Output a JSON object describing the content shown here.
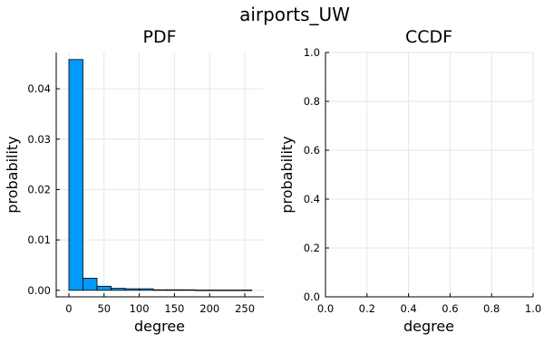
{
  "chart_data": [
    {
      "type": "bar",
      "figure_title": "airports_UW",
      "title": "PDF",
      "xlabel": "degree",
      "ylabel": "probability",
      "bin_width": 20,
      "bins": [
        {
          "start": 0,
          "end": 20,
          "value": 0.0458
        },
        {
          "start": 20,
          "end": 40,
          "value": 0.0024
        },
        {
          "start": 40,
          "end": 60,
          "value": 0.0008
        },
        {
          "start": 60,
          "end": 80,
          "value": 0.0004
        },
        {
          "start": 80,
          "end": 100,
          "value": 0.0003
        },
        {
          "start": 100,
          "end": 120,
          "value": 0.0003
        },
        {
          "start": 120,
          "end": 140,
          "value": 0.0001
        },
        {
          "start": 140,
          "end": 160,
          "value": 0.0001
        },
        {
          "start": 160,
          "end": 180,
          "value": 0.0001
        },
        {
          "start": 180,
          "end": 200,
          "value": 5e-05
        },
        {
          "start": 200,
          "end": 220,
          "value": 5e-05
        },
        {
          "start": 220,
          "end": 240,
          "value": 5e-05
        },
        {
          "start": 240,
          "end": 260,
          "value": 5e-05
        }
      ],
      "xlim": [
        -18,
        277
      ],
      "ylim": [
        -0.0013,
        0.0472
      ],
      "xticks": [
        0,
        50,
        100,
        150,
        200,
        250
      ],
      "xtick_labels": [
        "0",
        "50",
        "100",
        "150",
        "200",
        "250"
      ],
      "yticks": [
        0,
        0.01,
        0.02,
        0.03,
        0.04
      ],
      "ytick_labels": [
        "0.00",
        "0.01",
        "0.02",
        "0.03",
        "0.04"
      ],
      "grid": true,
      "bar_color": "#009AFA"
    },
    {
      "type": "line",
      "title": "CCDF",
      "xlabel": "degree",
      "ylabel": "probability",
      "series": [],
      "xlim": [
        0,
        1
      ],
      "ylim": [
        0,
        1
      ],
      "xticks": [
        0,
        0.2,
        0.4,
        0.6,
        0.8,
        1.0
      ],
      "xtick_labels": [
        "0.0",
        "0.2",
        "0.4",
        "0.6",
        "0.8",
        "1.0"
      ],
      "yticks": [
        0,
        0.2,
        0.4,
        0.6,
        0.8,
        1.0
      ],
      "ytick_labels": [
        "0.0",
        "0.2",
        "0.4",
        "0.6",
        "0.8",
        "1.0"
      ],
      "grid": true
    }
  ]
}
